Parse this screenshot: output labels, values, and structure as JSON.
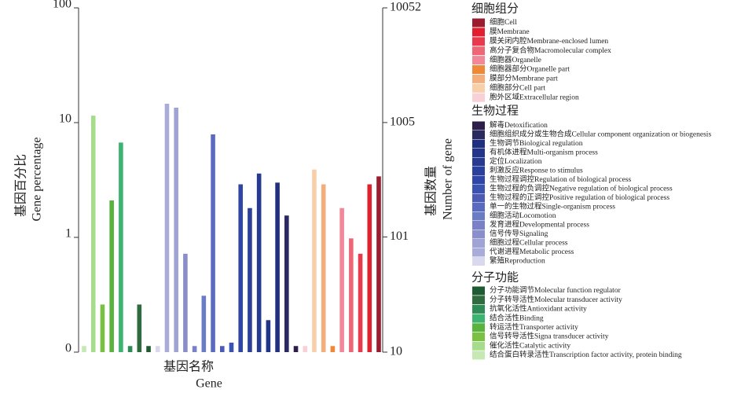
{
  "chart_data": {
    "type": "bar",
    "log_scale": true,
    "xlabel": [
      "基因名称",
      "Gene"
    ],
    "ylabel": [
      "基因百分比",
      "Gene percentage"
    ],
    "y2label": [
      "基因数量",
      "Number of gene"
    ],
    "ylim": [
      0.1,
      100
    ],
    "yticks": [
      {
        "value": 0.1,
        "label": "0"
      },
      1,
      10,
      100
    ],
    "y2lim": [
      10,
      10052
    ],
    "y2ticks": [
      10,
      101,
      1005,
      10052
    ],
    "values": [
      0.113,
      11.5,
      0.26,
      2.1,
      6.7,
      0.113,
      0.26,
      0.113,
      0.113,
      14.6,
      13.5,
      0.72,
      0.113,
      0.31,
      7.9,
      0.113,
      0.121,
      2.9,
      1.8,
      3.6,
      0.19,
      3.0,
      1.55,
      0.113,
      0.113,
      3.9,
      2.9,
      0.113,
      1.8,
      0.98,
      0.72,
      2.9,
      3.4
    ],
    "legend": [
      {
        "title": "细胞组分",
        "items": [
          {
            "name": "细胞Cell",
            "color": "#9b1c2e"
          },
          {
            "name": "膜Membrane",
            "color": "#e0202e"
          },
          {
            "name": "膜关闭内腔Membrane-enclosed lumen",
            "color": "#e83a4c"
          },
          {
            "name": "高分子复合物Macromolecular complex",
            "color": "#ee6777"
          },
          {
            "name": "细胞器Organelle",
            "color": "#f0889a"
          },
          {
            "name": "细胞器部分Organelle part",
            "color": "#f0883a"
          },
          {
            "name": "膜部分Membrane part",
            "color": "#f4ae7c"
          },
          {
            "name": "细胞部分Cell part",
            "color": "#f8cfa8"
          },
          {
            "name": "胞外区域Extracellular region",
            "color": "#f8d0d6"
          }
        ]
      },
      {
        "title": "生物过程",
        "items": [
          {
            "name": "解毒Detoxification",
            "color": "#2d1f4a"
          },
          {
            "name": "细胞组织成分或生物合成Cellular component organization or biogenesis",
            "color": "#2a2a60"
          },
          {
            "name": "生物调节Biological regulation",
            "color": "#20307e"
          },
          {
            "name": "有机体进程Multi-organism process",
            "color": "#233588"
          },
          {
            "name": "定位Localization",
            "color": "#263a92"
          },
          {
            "name": "刺激反应Response to stimulus",
            "color": "#2b3f9c"
          },
          {
            "name": "生物过程调控Regulation of biological process",
            "color": "#2f46a6"
          },
          {
            "name": "生物过程的负调控Negative regulation of biological process",
            "color": "#3b53b0"
          },
          {
            "name": "生物过程的正调控Positive regulation of biological process",
            "color": "#4c5cb5"
          },
          {
            "name": "单一的生物过程Single-organism process",
            "color": "#5a6bbf"
          },
          {
            "name": "细胞活动Locomotion",
            "color": "#6a7dc4"
          },
          {
            "name": "发育进程Developmental process",
            "color": "#7b81c7"
          },
          {
            "name": "信号传导Signaling",
            "color": "#8a8fcc"
          },
          {
            "name": "细胞过程Cellular process",
            "color": "#9fa3d6"
          },
          {
            "name": "代谢进程Metabolic process",
            "color": "#a9acdb"
          },
          {
            "name": "繁殖Reproduction",
            "color": "#d8d8ef"
          }
        ]
      },
      {
        "title": "分子功能",
        "items": [
          {
            "name": "分子功能调节Molecular function regulator",
            "color": "#1e5a32"
          },
          {
            "name": "分子转导活性Molecular transducer activity",
            "color": "#2f6b3f"
          },
          {
            "name": "抗氧化活性Antioxidant activity",
            "color": "#2e8b57"
          },
          {
            "name": "结合活性Binding",
            "color": "#3cb371"
          },
          {
            "name": "转运活性Transporter activity",
            "color": "#59b33c"
          },
          {
            "name": "信号转导活性Signa transducer activity",
            "color": "#7ac143"
          },
          {
            "name": "催化活性Catalytic activity",
            "color": "#a6dc8c"
          },
          {
            "name": "结合蛋白转录活性Transcription factor activity, protein binding",
            "color": "#c6e9b4"
          }
        ]
      }
    ]
  }
}
